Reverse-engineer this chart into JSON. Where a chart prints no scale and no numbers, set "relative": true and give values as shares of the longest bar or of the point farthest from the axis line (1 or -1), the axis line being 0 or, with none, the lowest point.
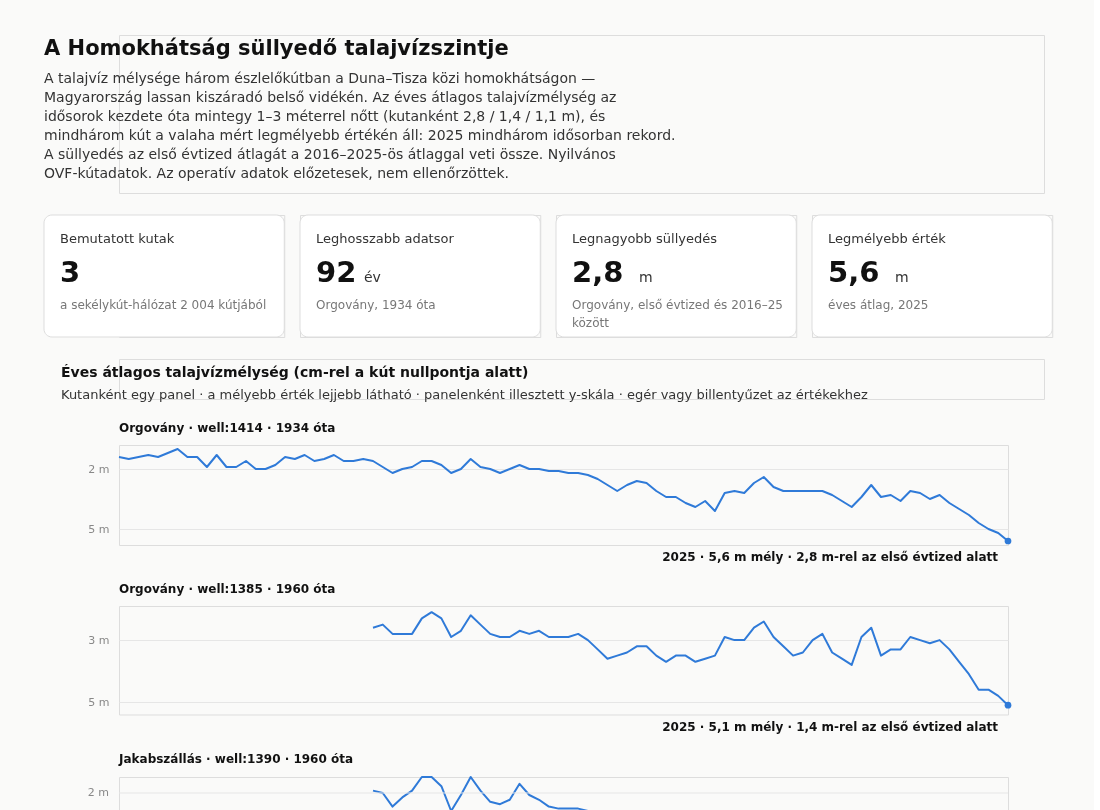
{
  "chart_data": [
    {
      "type": "line",
      "title": "A Homokhátság süllyedő talajvízszintje",
      "subtitle": "A talajvíz mélysége három észlelőkútban a Duna–Tisza közi homokhátságon — Magyarország lassan kiszáradó belső vidékén. Az éves átlagos talajvízmélység az idősorok kezdete óta mintegy 1–3 méterrel nőtt (kutanként 2,8 / 1,4 / 1,1 m), és mindhárom kút a valaha mért legmélyebb értékén áll: 2025 mindhárom idősorban rekord. A süllyedés az első évtized átlagát a 2016–2025-ös átlaggal veti össze. Nyilvános OVF-kútadatok. Az operatív adatok előzetesek, nem ellenőrzöttek.",
      "annotations": [
        "Bemutatott kutak",
        "3",
        "a sekélykút-hálózat 2 004 kútjából",
        "Leghosszabb adatsor",
        "92 év",
        "Orgovány, 1934 óta",
        "Legnagyobb süllyedés",
        "2,8 m",
        "Orgovány, első évtized és 2016–25 között",
        "Legmélyebb érték",
        "5,6 m",
        "éves átlag, 2025",
        "Éves átlagos talajvízmélység (cm-rel a kút nullpontja alatt)",
        "Kutanként egy panel · a mélyebb érték lejjebb látható · panelenként illesztett y-skála · egér vagy billentyűzet az értékekhez",
        "Orgovány · well:1414 · 1934 óta",
        "2025 · 5,6 m mély · 2,8 m-rel az első évtized alatt"
      ],
      "ylim": [
        5.8,
        0.8
      ],
      "yticks": [
        {
          "value": 2,
          "label": "2 m"
        },
        {
          "value": 5,
          "label": "5 m"
        }
      ],
      "grid": "y",
      "tick_labels": "y",
      "categories": [
        null,
        null,
        null,
        null,
        null,
        null,
        null,
        null,
        null,
        null,
        null,
        null,
        null,
        null,
        null,
        null,
        null,
        null,
        null,
        null,
        null,
        null,
        null,
        null,
        null,
        null,
        null,
        null,
        null,
        null,
        null,
        null,
        null,
        null,
        null,
        null,
        null,
        null,
        null,
        null,
        null,
        null,
        null,
        null,
        null,
        null,
        null,
        null,
        null,
        null,
        null,
        null,
        null,
        null,
        null,
        null,
        null,
        null,
        null,
        null,
        null,
        null,
        null,
        null,
        null,
        null,
        null,
        null,
        null,
        null,
        null,
        null,
        null,
        null,
        null,
        null,
        null,
        null,
        null,
        null,
        null,
        null,
        null,
        null,
        null,
        null,
        null,
        null,
        null,
        null,
        null,
        null
      ],
      "series": [
        {
          "color": "#2f7ad8",
          "values": [
            1.4,
            1.5,
            1.4,
            1.3,
            1.4,
            1.2,
            1.0,
            1.4,
            1.4,
            1.9,
            1.3,
            1.9,
            1.9,
            1.6,
            2.0,
            2.0,
            1.8,
            1.4,
            1.5,
            1.3,
            1.6,
            1.5,
            1.3,
            1.6,
            1.6,
            1.5,
            1.6,
            1.9,
            2.2,
            2.0,
            1.9,
            1.6,
            1.6,
            1.8,
            2.2,
            2.0,
            1.5,
            1.9,
            2.0,
            2.2,
            2.0,
            1.8,
            2.0,
            2.0,
            2.1,
            2.1,
            2.2,
            2.2,
            2.3,
            2.5,
            2.8,
            3.1,
            2.8,
            2.6,
            2.7,
            3.1,
            3.4,
            3.4,
            3.7,
            3.9,
            3.6,
            4.1,
            3.2,
            3.1,
            3.2,
            2.7,
            2.4,
            2.9,
            3.1,
            3.1,
            3.1,
            3.1,
            3.1,
            3.3,
            3.6,
            3.9,
            3.4,
            2.8,
            3.4,
            3.3,
            3.6,
            3.1,
            3.2,
            3.5,
            3.3,
            3.7,
            4.0,
            4.3,
            4.7,
            5.0,
            5.2,
            5.6
          ]
        },
        {
          "type": "scatter",
          "color": "#2f7ad8",
          "values": [
            null,
            null,
            null,
            null,
            null,
            null,
            null,
            null,
            null,
            null,
            null,
            null,
            null,
            null,
            null,
            null,
            null,
            null,
            null,
            null,
            null,
            null,
            null,
            null,
            null,
            null,
            null,
            null,
            null,
            null,
            null,
            null,
            null,
            null,
            null,
            null,
            null,
            null,
            null,
            null,
            null,
            null,
            null,
            null,
            null,
            null,
            null,
            null,
            null,
            null,
            null,
            null,
            null,
            null,
            null,
            null,
            null,
            null,
            null,
            null,
            null,
            null,
            null,
            null,
            null,
            null,
            null,
            null,
            null,
            null,
            null,
            null,
            null,
            null,
            null,
            null,
            null,
            null,
            null,
            null,
            null,
            null,
            null,
            null,
            null,
            null,
            null,
            null,
            null,
            null,
            null,
            5.6
          ]
        }
      ]
    },
    {
      "type": "line",
      "title": "Orgovány · well:1385 · 1960 óta",
      "annotations": [
        "2025 · 5,1 m mély · 1,4 m-rel az első évtized alatt"
      ],
      "ylim": [
        5.4,
        1.9
      ],
      "yticks": [
        {
          "value": 3,
          "label": "3 m"
        },
        {
          "value": 5,
          "label": "5 m"
        }
      ],
      "grid": "y",
      "tick_labels": "y",
      "categories": [
        null,
        null,
        null,
        null,
        null,
        null,
        null,
        null,
        null,
        null,
        null,
        null,
        null,
        null,
        null,
        null,
        null,
        null,
        null,
        null,
        null,
        null,
        null,
        null,
        null,
        null,
        null,
        null,
        null,
        null,
        null,
        null,
        null,
        null,
        null,
        null,
        null,
        null,
        null,
        null,
        null,
        null,
        null,
        null,
        null,
        null,
        null,
        null,
        null,
        null,
        null,
        null,
        null,
        null,
        null,
        null,
        null,
        null,
        null,
        null,
        null,
        null,
        null,
        null,
        null,
        null,
        null,
        null,
        null,
        null,
        null,
        null,
        null,
        null,
        null,
        null,
        null,
        null,
        null,
        null,
        null,
        null,
        null,
        null,
        null,
        null,
        null,
        null,
        null,
        null,
        null,
        null
      ],
      "series": [
        {
          "color": "#2f7ad8",
          "values": [
            null,
            null,
            null,
            null,
            null,
            null,
            null,
            null,
            null,
            null,
            null,
            null,
            null,
            null,
            null,
            null,
            null,
            null,
            null,
            null,
            null,
            null,
            null,
            null,
            null,
            null,
            2.6,
            2.5,
            2.8,
            2.8,
            2.8,
            2.3,
            2.1,
            2.3,
            2.9,
            2.7,
            2.2,
            2.5,
            2.8,
            2.9,
            2.9,
            2.7,
            2.8,
            2.7,
            2.9,
            2.9,
            2.9,
            2.8,
            3.0,
            3.3,
            3.6,
            3.5,
            3.4,
            3.2,
            3.2,
            3.5,
            3.7,
            3.5,
            3.5,
            3.7,
            3.6,
            3.5,
            2.9,
            3.0,
            3.0,
            2.6,
            2.4,
            2.9,
            3.2,
            3.5,
            3.4,
            3.0,
            2.8,
            3.4,
            3.6,
            3.8,
            2.9,
            2.6,
            3.5,
            3.3,
            3.3,
            2.9,
            3.0,
            3.1,
            3.0,
            3.3,
            3.7,
            4.1,
            4.6,
            4.6,
            4.8,
            5.1
          ]
        },
        {
          "type": "scatter",
          "color": "#2f7ad8",
          "values": [
            null,
            null,
            null,
            null,
            null,
            null,
            null,
            null,
            null,
            null,
            null,
            null,
            null,
            null,
            null,
            null,
            null,
            null,
            null,
            null,
            null,
            null,
            null,
            null,
            null,
            null,
            null,
            null,
            null,
            null,
            null,
            null,
            null,
            null,
            null,
            null,
            null,
            null,
            null,
            null,
            null,
            null,
            null,
            null,
            null,
            null,
            null,
            null,
            null,
            null,
            null,
            null,
            null,
            null,
            null,
            null,
            null,
            null,
            null,
            null,
            null,
            null,
            null,
            null,
            null,
            null,
            null,
            null,
            null,
            null,
            null,
            null,
            null,
            null,
            null,
            null,
            null,
            null,
            null,
            null,
            null,
            null,
            null,
            null,
            null,
            null,
            null,
            null,
            null,
            null,
            null,
            5.1
          ]
        }
      ]
    },
    {
      "type": "line",
      "title": "Jakabszállás · well:1390 · 1960 óta",
      "relative": true,
      "tick_labels": false,
      "ref_lines": [
        {
          "axis": "y",
          "value": 0.53,
          "label": "2 m"
        }
      ],
      "categories": [
        null,
        null,
        null,
        null,
        null,
        null,
        null,
        null,
        null,
        null,
        null,
        null,
        null,
        null,
        null,
        null,
        null,
        null,
        null,
        null,
        null,
        null,
        null,
        null,
        null,
        null,
        null,
        null,
        null,
        null,
        null,
        null,
        null,
        null,
        null,
        null,
        null,
        null,
        null,
        null,
        null,
        null,
        null,
        null,
        null,
        null,
        null,
        null,
        null,
        null,
        null,
        null,
        null,
        null,
        null,
        null,
        null,
        null,
        null,
        null,
        null,
        null,
        null,
        null,
        null,
        null,
        null,
        null,
        null,
        null,
        null,
        null,
        null,
        null,
        null,
        null,
        null,
        null,
        null,
        null,
        null,
        null,
        null,
        null,
        null,
        null,
        null,
        null,
        null,
        null,
        null,
        null
      ],
      "series": [
        {
          "color": "#2f7ad8",
          "values": [
            null,
            null,
            null,
            null,
            null,
            null,
            null,
            null,
            null,
            null,
            null,
            null,
            null,
            null,
            null,
            null,
            null,
            null,
            null,
            null,
            null,
            null,
            null,
            null,
            null,
            null,
            0.6,
            0.53,
            0.13,
            0.4,
            0.6,
            1,
            1,
            0.73,
            0,
            0.47,
            1,
            0.6,
            0.27,
            0.2,
            0.33,
            0.8,
            0.47,
            0.33,
            0.13,
            0.07,
            0.07,
            0.07,
            0,
            null,
            null,
            null,
            null,
            null,
            null,
            null,
            null,
            null,
            null,
            null,
            null,
            null,
            null,
            null,
            null,
            null,
            null,
            null,
            null,
            null,
            null,
            null,
            null,
            null,
            null,
            null,
            null,
            null,
            null,
            null,
            null,
            null,
            null,
            null,
            null,
            null,
            null,
            null,
            null,
            null,
            null,
            null
          ]
        }
      ]
    }
  ]
}
